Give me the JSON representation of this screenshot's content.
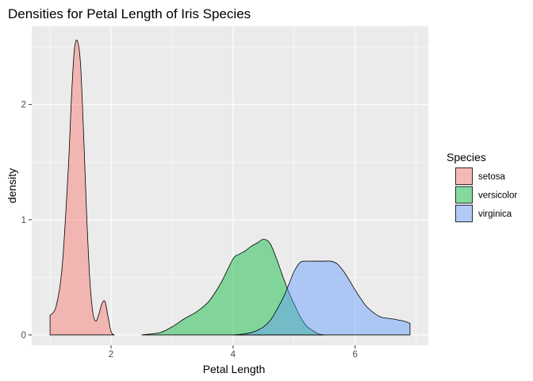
{
  "chart_data": {
    "type": "area",
    "title": "Densities for Petal Length of Iris Species",
    "xlabel": "Petal Length",
    "ylabel": "density",
    "xlim": [
      0.7,
      7.2
    ],
    "ylim": [
      -0.09,
      2.68
    ],
    "x_ticks": [
      2,
      4,
      6
    ],
    "x_tick_labels": [
      "2",
      "4",
      "6"
    ],
    "y_ticks": [
      0,
      1,
      2
    ],
    "y_tick_labels": [
      "0",
      "1",
      "2"
    ],
    "grid": true,
    "legend": {
      "title": "Species",
      "placement": "right"
    },
    "series": [
      {
        "name": "setosa",
        "color": "#F8766D",
        "x": [
          1.0,
          1.1,
          1.2,
          1.3,
          1.35,
          1.4,
          1.45,
          1.5,
          1.55,
          1.6,
          1.65,
          1.7,
          1.75,
          1.8,
          1.85,
          1.9,
          1.95,
          2.0,
          2.05
        ],
        "values": [
          0.17,
          0.25,
          0.6,
          1.45,
          2.05,
          2.48,
          2.55,
          2.35,
          1.75,
          1.05,
          0.5,
          0.2,
          0.12,
          0.18,
          0.27,
          0.29,
          0.16,
          0.03,
          0.0
        ]
      },
      {
        "name": "versicolor",
        "color": "#00BA38",
        "x": [
          2.5,
          2.8,
          3.0,
          3.2,
          3.4,
          3.6,
          3.8,
          4.0,
          4.1,
          4.2,
          4.3,
          4.4,
          4.5,
          4.6,
          4.7,
          4.8,
          4.9,
          5.0,
          5.1,
          5.2,
          5.3,
          5.4,
          5.5
        ],
        "values": [
          0.0,
          0.02,
          0.07,
          0.14,
          0.2,
          0.29,
          0.45,
          0.66,
          0.7,
          0.73,
          0.77,
          0.8,
          0.83,
          0.8,
          0.68,
          0.53,
          0.39,
          0.27,
          0.16,
          0.08,
          0.04,
          0.01,
          0.0
        ]
      },
      {
        "name": "virginica",
        "color": "#619CFF",
        "x": [
          4.0,
          4.2,
          4.4,
          4.6,
          4.8,
          4.9,
          5.0,
          5.1,
          5.2,
          5.3,
          5.4,
          5.5,
          5.6,
          5.7,
          5.8,
          5.9,
          6.0,
          6.1,
          6.2,
          6.4,
          6.6,
          6.8,
          6.9
        ],
        "values": [
          0.0,
          0.01,
          0.04,
          0.12,
          0.3,
          0.42,
          0.55,
          0.63,
          0.64,
          0.64,
          0.64,
          0.64,
          0.64,
          0.62,
          0.56,
          0.48,
          0.39,
          0.31,
          0.24,
          0.16,
          0.14,
          0.12,
          0.1
        ]
      }
    ]
  }
}
